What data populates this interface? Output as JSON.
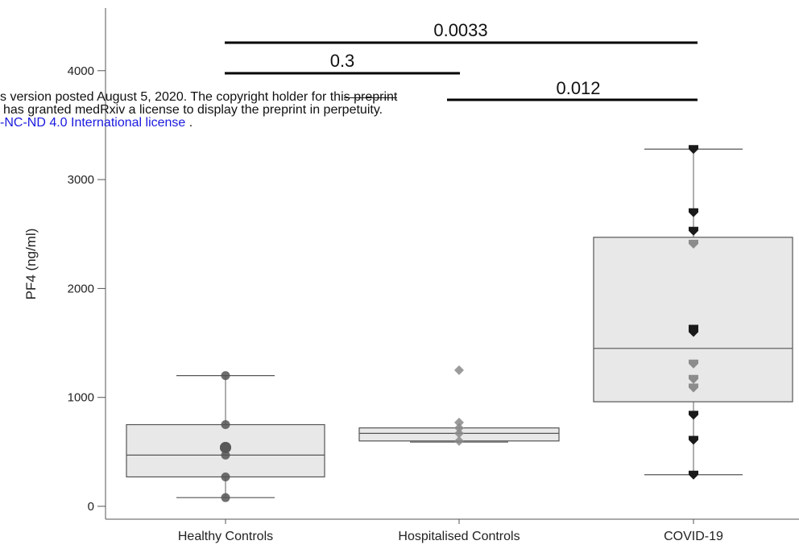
{
  "notice": {
    "line1_a": "s version posted August 5, 2020. The copyright holder for thi",
    "line1_b": "s preprint",
    "line2": "has granted medRxiv a license to display the preprint in perpetuity.",
    "line3_link": "-NC-ND 4.0 International license",
    "line3_end": " ."
  },
  "chart_data": {
    "type": "box",
    "ylabel": "PF4 (ng/ml)",
    "xlabel": "",
    "ylim": [
      -100,
      4650
    ],
    "yticks": [
      0,
      1000,
      2000,
      3000,
      4000
    ],
    "categories": [
      "Healthy Controls",
      "Hospitalised Controls",
      "COVID-19"
    ],
    "boxes": [
      {
        "category": "Healthy Controls",
        "min": 80,
        "q1": 270,
        "median": 470,
        "q3": 750,
        "max": 1200,
        "points": [
          1200,
          750,
          540,
          540,
          470,
          270,
          80
        ],
        "marker": "circle",
        "color": "#555555"
      },
      {
        "category": "Hospitalised Controls",
        "min": 590,
        "q1": 600,
        "median": 670,
        "q3": 720,
        "max": 720,
        "points": [
          1250,
          770,
          720,
          670,
          600
        ],
        "marker": "diamond",
        "color": "#8a8a8a"
      },
      {
        "category": "COVID-19",
        "min": 290,
        "q1": 960,
        "median": 1450,
        "q3": 2470,
        "max": 3280,
        "points": [
          3280,
          2700,
          2530,
          2410,
          1630,
          1600,
          1310,
          1170,
          1090,
          840,
          610,
          290
        ],
        "marker": "shield",
        "color": "#1a1a1a",
        "light_points": [
          2410,
          1310,
          1170,
          1090
        ]
      }
    ],
    "comparisons": [
      {
        "from": "Healthy Controls",
        "to": "COVID-19",
        "p": "0.0033"
      },
      {
        "from": "Healthy Controls",
        "to": "Hospitalised Controls",
        "p": "0.3"
      },
      {
        "from": "Hospitalised Controls",
        "to": "COVID-19",
        "p": "0.012"
      }
    ],
    "grid": false,
    "legend": "none"
  }
}
